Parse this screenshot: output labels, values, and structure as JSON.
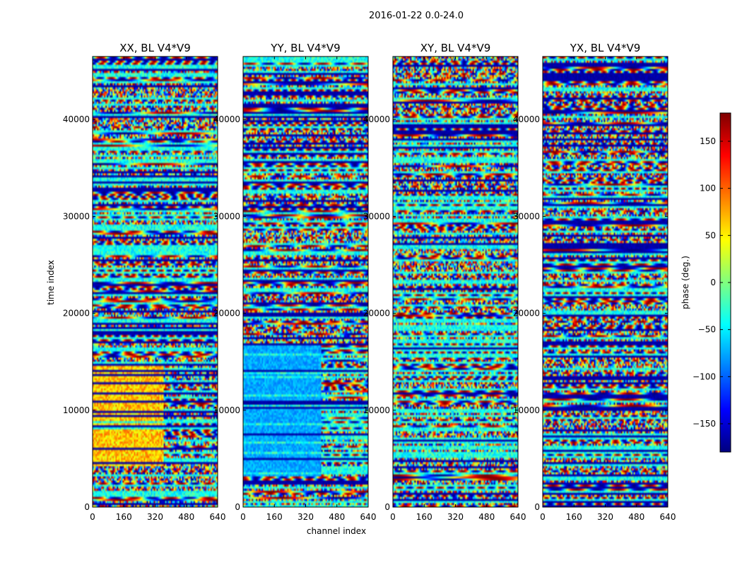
{
  "chart_data": {
    "type": "heatmap",
    "suptitle": "2016-01-22 0.0-24.0",
    "xlabel": "channel index",
    "ylabel": "time index",
    "xlim": [
      0,
      640
    ],
    "ylim": [
      0,
      46500
    ],
    "x_ticks": [
      0,
      160,
      320,
      480,
      640
    ],
    "y_ticks": [
      0,
      10000,
      20000,
      30000,
      40000
    ],
    "panels": [
      {
        "title": "XX, BL V4*V9"
      },
      {
        "title": "YY, BL V4*V9"
      },
      {
        "title": "XY, BL V4*V9"
      },
      {
        "title": "YX, BL V4*V9"
      }
    ],
    "colorbar": {
      "label": "phase (deg.)",
      "range": [
        -180,
        180
      ],
      "ticks": [
        150,
        100,
        50,
        0,
        -50,
        -100,
        -150
      ],
      "tick_labels": [
        "150",
        "100",
        "50",
        "0",
        "−50",
        "−100",
        "−150"
      ],
      "colormap": "jet",
      "colors": [
        "#00007f",
        "#0000ff",
        "#007fff",
        "#00ffff",
        "#7fff7f",
        "#ffff00",
        "#ff7f00",
        "#ff0000",
        "#7f0000"
      ]
    }
  }
}
